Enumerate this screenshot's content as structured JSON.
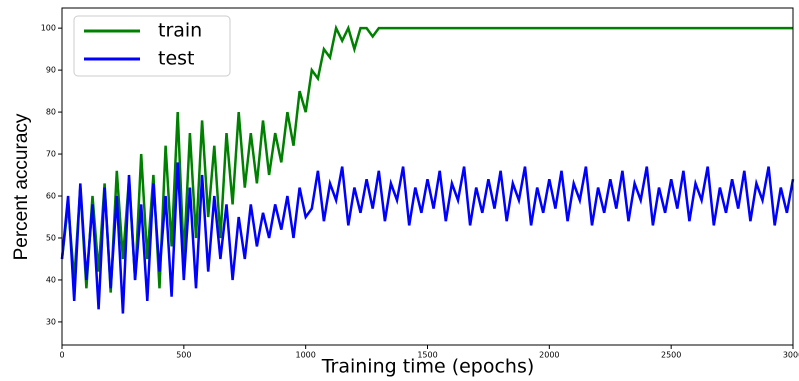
{
  "chart_data": {
    "type": "line",
    "xlabel": "Training time (epochs)",
    "ylabel": "Percent accuracy",
    "x": [
      0,
      25,
      50,
      75,
      100,
      125,
      150,
      175,
      200,
      225,
      250,
      275,
      300,
      325,
      350,
      375,
      400,
      425,
      450,
      475,
      500,
      525,
      550,
      575,
      600,
      625,
      650,
      675,
      700,
      725,
      750,
      775,
      800,
      825,
      850,
      875,
      900,
      925,
      950,
      975,
      1000,
      1025,
      1050,
      1075,
      1100,
      1125,
      1150,
      1175,
      1200,
      1225,
      1250,
      1275,
      1300,
      1325,
      1350,
      1375,
      1400,
      1425,
      1450,
      1475,
      1500,
      1525,
      1550,
      1575,
      1600,
      1625,
      1650,
      1675,
      1700,
      1725,
      1750,
      1775,
      1800,
      1825,
      1850,
      1875,
      1900,
      1925,
      1950,
      1975,
      2000,
      2025,
      2050,
      2075,
      2100,
      2125,
      2150,
      2175,
      2200,
      2225,
      2250,
      2275,
      2300,
      2325,
      2350,
      2375,
      2400,
      2425,
      2450,
      2475,
      2500,
      2525,
      2550,
      2575,
      2600,
      2625,
      2650,
      2675,
      2700,
      2725,
      2750,
      2775,
      2800,
      2825,
      2850,
      2875,
      2900,
      2925,
      2950,
      2975,
      3000
    ],
    "series": [
      {
        "name": "train",
        "color": "#008000",
        "values": [
          45,
          58,
          40,
          62,
          38,
          60,
          42,
          63,
          37,
          66,
          45,
          64,
          40,
          70,
          45,
          65,
          38,
          72,
          48,
          80,
          45,
          75,
          50,
          78,
          55,
          72,
          50,
          75,
          58,
          80,
          62,
          75,
          63,
          78,
          65,
          75,
          68,
          80,
          72,
          85,
          80,
          90,
          88,
          95,
          93,
          100,
          97,
          100,
          95,
          100,
          100,
          98,
          100,
          100,
          100,
          100,
          100,
          100,
          100,
          100,
          100,
          100,
          100,
          100,
          100,
          100,
          100,
          100,
          100,
          100,
          100,
          100,
          100,
          100,
          100,
          100,
          100,
          100,
          100,
          100,
          100,
          100,
          100,
          100,
          100,
          100,
          100,
          100,
          100,
          100,
          100,
          100,
          100,
          100,
          100,
          100,
          100,
          100,
          100,
          100,
          100,
          100,
          100,
          100,
          100,
          100,
          100,
          100,
          100,
          100,
          100,
          100,
          100,
          100,
          100,
          100,
          100,
          100,
          100,
          100,
          100
        ]
      },
      {
        "name": "test",
        "color": "#0000ff",
        "values": [
          45,
          60,
          35,
          63,
          40,
          58,
          33,
          62,
          38,
          60,
          32,
          65,
          40,
          58,
          35,
          63,
          42,
          60,
          36,
          68,
          40,
          62,
          38,
          65,
          42,
          60,
          45,
          58,
          40,
          55,
          45,
          58,
          48,
          56,
          50,
          58,
          52,
          60,
          50,
          62,
          55,
          57,
          66,
          54,
          63,
          59,
          67,
          53,
          62,
          56,
          64,
          57,
          66,
          54,
          63,
          59,
          67,
          53,
          62,
          56,
          64,
          57,
          66,
          54,
          63,
          59,
          67,
          53,
          62,
          56,
          64,
          57,
          66,
          54,
          63,
          59,
          67,
          53,
          62,
          56,
          64,
          57,
          66,
          54,
          63,
          59,
          67,
          53,
          62,
          56,
          64,
          57,
          66,
          54,
          63,
          59,
          67,
          53,
          62,
          56,
          64,
          57,
          66,
          54,
          63,
          59,
          67,
          53,
          62,
          56,
          64,
          57,
          66,
          54,
          63,
          59,
          67,
          53,
          62,
          56,
          64
        ]
      }
    ],
    "xlim": [
      0,
      3000
    ],
    "xticks": [
      0,
      500,
      1000,
      1500,
      2000,
      2500,
      3000
    ],
    "ylim": [
      24.5,
      104.8
    ],
    "yticks": [
      30,
      40,
      50,
      60,
      70,
      80,
      90,
      100
    ],
    "legend": "upper left",
    "grid": false
  }
}
